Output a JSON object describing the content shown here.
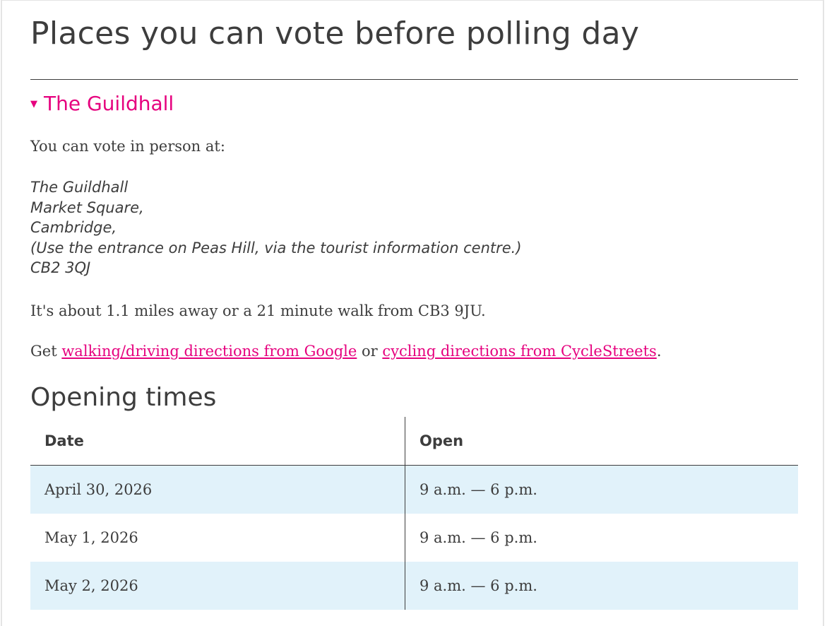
{
  "page_title": "Places you can vote before polling day",
  "station": {
    "name": "The Guildhall",
    "intro": "You can vote in person at:",
    "address_lines": [
      "The Guildhall",
      "Market Square,",
      "Cambridge,",
      "(Use the entrance on Peas Hill, via the tourist information centre.)",
      "CB2 3QJ"
    ],
    "distance_text": "It's about 1.1 miles away or a 21 minute walk from CB3 9JU.",
    "directions": {
      "prefix": "Get ",
      "google_link": "walking/driving directions from Google",
      "middle": " or ",
      "cyclestreets_link": "cycling directions from CycleStreets",
      "suffix": "."
    }
  },
  "opening_times": {
    "heading": "Opening times",
    "columns": [
      "Date",
      "Open"
    ],
    "rows": [
      [
        "April 30, 2026",
        "9 a.m. — 6 p.m."
      ],
      [
        "May 1, 2026",
        "9 a.m. — 6 p.m."
      ],
      [
        "May 2, 2026",
        "9 a.m. — 6 p.m."
      ]
    ]
  },
  "colors": {
    "accent": "#e6007e",
    "row_alt": "#e1f2fa",
    "text": "#3d3d3d"
  }
}
